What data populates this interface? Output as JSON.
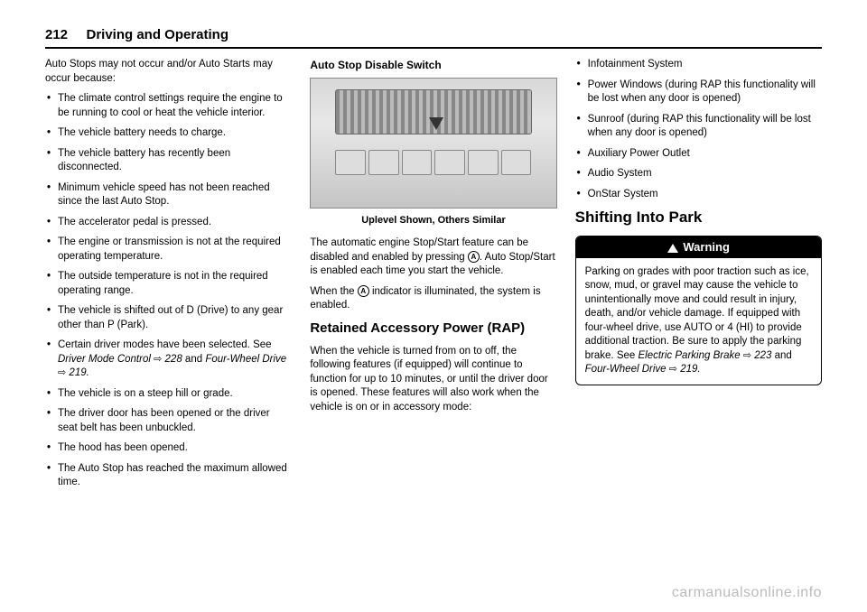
{
  "header": {
    "page_number": "212",
    "title": "Driving and Operating"
  },
  "col1": {
    "intro": "Auto Stops may not occur and/or Auto Starts may occur because:",
    "bullets": [
      "The climate control settings require the engine to be running to cool or heat the vehicle interior.",
      "The vehicle battery needs to charge.",
      "The vehicle battery has recently been disconnected.",
      "Minimum vehicle speed has not been reached since the last Auto Stop.",
      "The accelerator pedal is pressed.",
      "The engine or transmission is not at the required operating temperature.",
      "The outside temperature is not in the required operating range.",
      "The vehicle is shifted out of D (Drive) to any gear other than P (Park).",
      "Certain driver modes have been selected. See",
      "The vehicle is on a steep hill or grade.",
      "The driver door has been opened or the driver seat belt has been unbuckled.",
      "The hood has been opened.",
      "The Auto Stop has reached the maximum allowed time."
    ],
    "ref1": "Driver Mode Control",
    "ref1_page": "228",
    "ref1_and": "and",
    "ref2": "Four-Wheel Drive",
    "ref2_page": "219."
  },
  "col2": {
    "subhead": "Auto Stop Disable Switch",
    "caption": "Uplevel Shown, Others Similar",
    "para1a": "The automatic engine Stop/Start feature can be disabled and enabled by pressing",
    "para1b": ". Auto Stop/Start is enabled each time you start the vehicle.",
    "para2a": "When the",
    "para2b": "indicator is illuminated, the system is enabled.",
    "section_head": "Retained Accessory Power (RAP)",
    "rap_text": "When the vehicle is turned from on to off, the following features (if equipped) will continue to function for up to 10 minutes, or until the driver door is opened. These features will also work when the vehicle is on or in accessory mode:"
  },
  "col3": {
    "bullets": [
      "Infotainment System",
      "Power Windows (during RAP this functionality will be lost when any door is opened)",
      "Sunroof (during RAP this functionality will be lost when any door is opened)",
      "Auxiliary Power Outlet",
      "Audio System",
      "OnStar System"
    ],
    "section_head": "Shifting Into Park",
    "warning_label": "Warning",
    "warning_text_a": "Parking on grades with poor traction such as ice, snow, mud, or gravel may cause the vehicle to unintentionally move and could result in injury, death, and/or vehicle damage. If equipped with four-wheel drive, use AUTO or 4 (HI) to provide additional traction. Be sure to apply the parking brake. See",
    "ref1": "Electric Parking Brake",
    "ref1_page": "223",
    "ref_and": "and",
    "ref2": "Four-Wheel Drive",
    "ref2_page": "219."
  },
  "watermark": "carmanualsonline.info"
}
